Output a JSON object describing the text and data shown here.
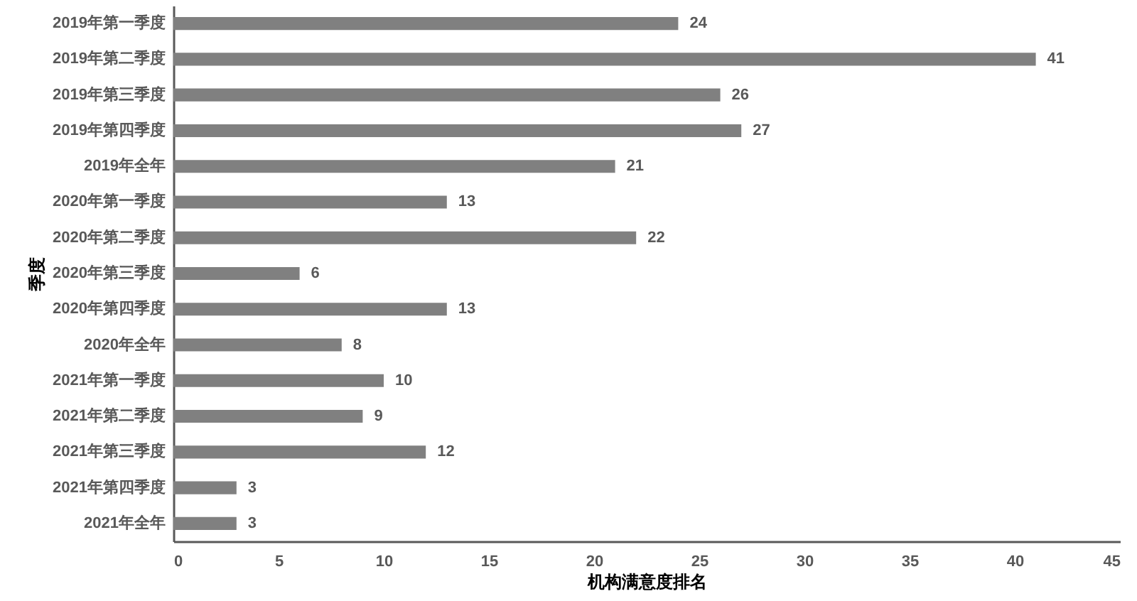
{
  "chart_data": {
    "type": "bar",
    "orientation": "horizontal",
    "xlabel": "机构满意度排名",
    "ylabel": "季度",
    "categories": [
      "2019年第一季度",
      "2019年第二季度",
      "2019年第三季度",
      "2019年第四季度",
      "2019年全年",
      "2020年第一季度",
      "2020年第二季度",
      "2020年第三季度",
      "2020年第四季度",
      "2020年全年",
      "2021年第一季度",
      "2021年第二季度",
      "2021年第三季度",
      "2021年第四季度",
      "2021年全年"
    ],
    "values": [
      24,
      41,
      26,
      27,
      21,
      13,
      22,
      6,
      13,
      8,
      10,
      9,
      12,
      3,
      3
    ],
    "color": "#808080",
    "xlim": [
      0,
      45
    ],
    "xticks": [
      0,
      5,
      10,
      15,
      20,
      25,
      30,
      35,
      40,
      45
    ],
    "data_labels": true
  }
}
